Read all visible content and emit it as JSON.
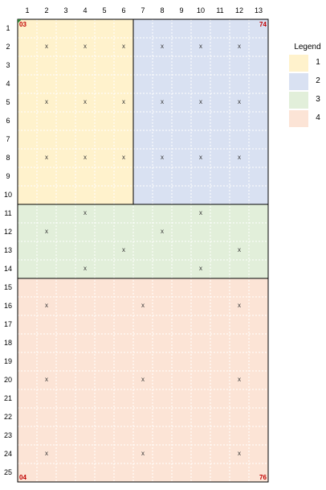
{
  "grid": {
    "columns": [
      "1",
      "2",
      "3",
      "4",
      "5",
      "6",
      "7",
      "8",
      "9",
      "10",
      "11",
      "12",
      "13"
    ],
    "rows": [
      "1",
      "2",
      "3",
      "4",
      "5",
      "6",
      "7",
      "8",
      "9",
      "10",
      "11",
      "12",
      "13",
      "14",
      "15",
      "16",
      "17",
      "18",
      "19",
      "20",
      "21",
      "22",
      "23",
      "24",
      "25"
    ],
    "marker": "x"
  },
  "regions": [
    {
      "id": "1",
      "color": "#fff2cc",
      "col_range": [
        1,
        6
      ],
      "row_range": [
        1,
        10
      ],
      "markers": [
        [
          2,
          2
        ],
        [
          4,
          2
        ],
        [
          6,
          2
        ],
        [
          2,
          5
        ],
        [
          4,
          5
        ],
        [
          6,
          5
        ],
        [
          2,
          8
        ],
        [
          4,
          8
        ],
        [
          6,
          8
        ]
      ]
    },
    {
      "id": "2",
      "color": "#d9e1f2",
      "col_range": [
        7,
        13
      ],
      "row_range": [
        1,
        10
      ],
      "markers": [
        [
          8,
          2
        ],
        [
          10,
          2
        ],
        [
          12,
          2
        ],
        [
          8,
          5
        ],
        [
          10,
          5
        ],
        [
          12,
          5
        ],
        [
          8,
          8
        ],
        [
          10,
          8
        ],
        [
          12,
          8
        ]
      ]
    },
    {
      "id": "3",
      "color": "#e2efda",
      "col_range": [
        1,
        13
      ],
      "row_range": [
        11,
        14
      ],
      "markers": [
        [
          4,
          11
        ],
        [
          10,
          11
        ],
        [
          2,
          12
        ],
        [
          8,
          12
        ],
        [
          6,
          13
        ],
        [
          12,
          13
        ],
        [
          4,
          14
        ],
        [
          10,
          14
        ]
      ]
    },
    {
      "id": "4",
      "color": "#fce4d6",
      "col_range": [
        1,
        13
      ],
      "row_range": [
        15,
        25
      ],
      "markers": [
        [
          2,
          16
        ],
        [
          7,
          16
        ],
        [
          12,
          16
        ],
        [
          2,
          20
        ],
        [
          7,
          20
        ],
        [
          12,
          20
        ],
        [
          2,
          24
        ],
        [
          7,
          24
        ],
        [
          12,
          24
        ]
      ]
    }
  ],
  "corner_labels": {
    "top_left": "03",
    "top_right": "74",
    "bottom_left": "04",
    "bottom_right": "76"
  },
  "legend": {
    "title": "Legend",
    "items": [
      {
        "label": "1",
        "color": "#fff2cc"
      },
      {
        "label": "2",
        "color": "#d9e1f2"
      },
      {
        "label": "3",
        "color": "#e2efda"
      },
      {
        "label": "4",
        "color": "#fce4d6"
      }
    ]
  }
}
